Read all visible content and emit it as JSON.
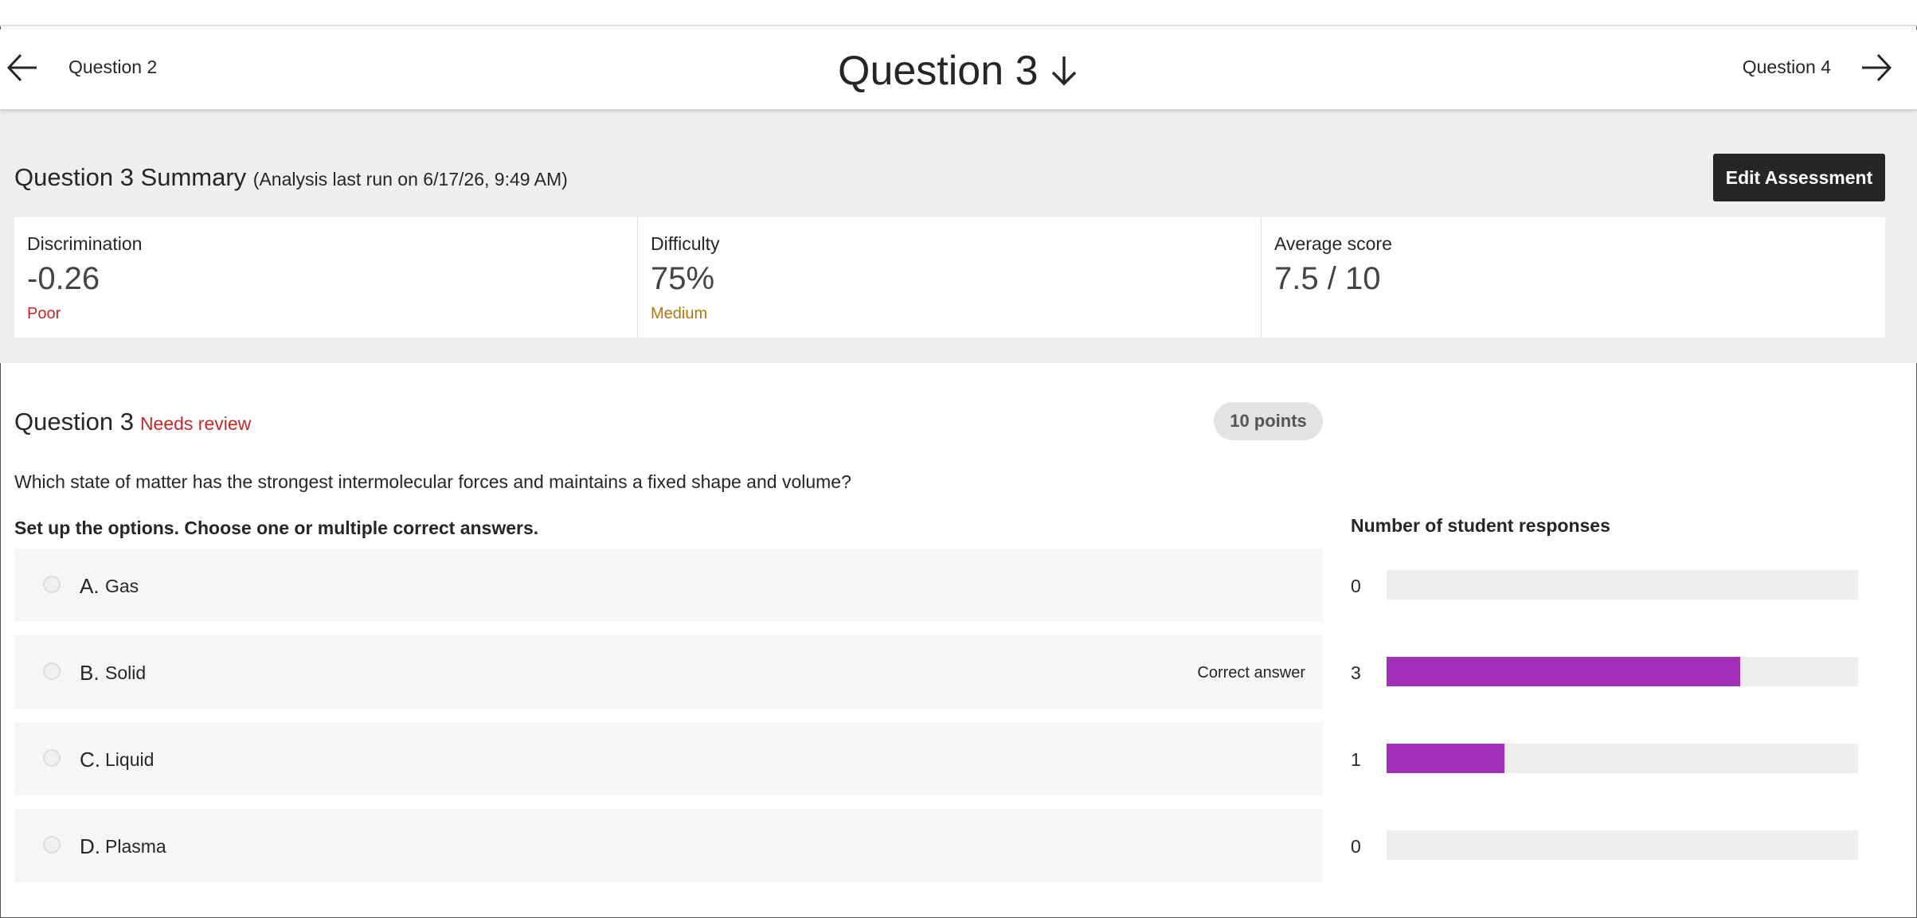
{
  "nav": {
    "previous": "Question 2",
    "current": "Question 3",
    "next": "Question 4"
  },
  "summary": {
    "title": "Question 3 Summary",
    "analysis": "(Analysis last run on 6/17/26, 9:49 AM)",
    "button": "Edit Assessment",
    "metrics": [
      {
        "label": "Discrimination",
        "value": "-0.26",
        "rating": "Poor"
      },
      {
        "label": "Difficulty",
        "value": "75%",
        "rating": "Medium"
      },
      {
        "label": "Average score",
        "value": "7.5 / 10"
      }
    ]
  },
  "question": {
    "title": "Question 3",
    "status": "Needs review",
    "points": "10 points",
    "text": "Which state of matter has the strongest intermolecular forces and maintains a fixed shape and volume?",
    "instruction": "Set up the options. Choose one or multiple correct answers.",
    "options": [
      {
        "letter": "A.",
        "text": "Gas"
      },
      {
        "letter": "B.",
        "text": "Solid",
        "note": "Correct answer"
      },
      {
        "letter": "C.",
        "text": "Liquid"
      },
      {
        "letter": "D.",
        "text": "Plasma"
      }
    ]
  },
  "chart_data": {
    "type": "bar",
    "title": "Number of student responses",
    "values": [
      0,
      3,
      1,
      0
    ],
    "color": "#a12fb8"
  }
}
